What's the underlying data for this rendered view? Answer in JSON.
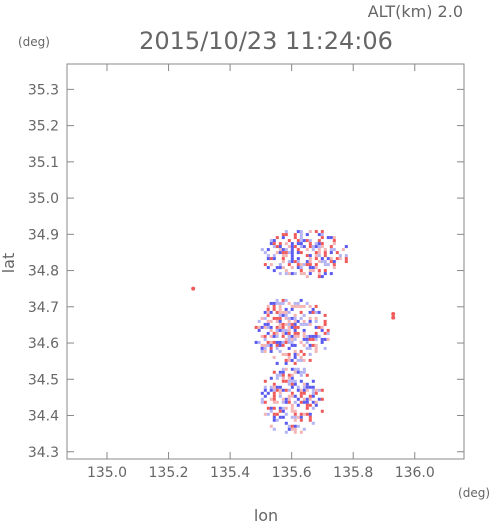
{
  "header": {
    "altitude_label": "ALT(km)  2.0",
    "timestamp": "2015/10/23 11:24:06"
  },
  "chart_data": {
    "type": "heatmap",
    "title": "2015/10/23 11:24:06",
    "subtitle": "ALT(km)  2.0",
    "xlabel": "lon",
    "ylabel": "lat",
    "x_unit": "(deg)",
    "y_unit": "(deg)",
    "xlim": [
      134.87,
      136.16
    ],
    "ylim": [
      34.28,
      35.37
    ],
    "x_ticks": [
      135.0,
      135.2,
      135.4,
      135.6,
      135.8,
      136.0
    ],
    "x_tick_labels": [
      "135.0",
      "135.2",
      "135.4",
      "135.6",
      "135.8",
      "136.0"
    ],
    "y_ticks": [
      34.3,
      34.4,
      34.5,
      34.6,
      34.7,
      34.8,
      34.9,
      35.0,
      35.1,
      35.2,
      35.3
    ],
    "y_tick_labels": [
      "34.3",
      "34.4",
      "34.5",
      "34.6",
      "34.7",
      "34.8",
      "34.9",
      "35.0",
      "35.1",
      "35.2",
      "35.3"
    ],
    "grid": false,
    "colors": {
      "positive": "#f05a5a",
      "negative": "#5a5af0",
      "light_positive": "#f5b4b4",
      "light_negative": "#b4b4f5",
      "axis": "#888888"
    },
    "isolated_points": [
      {
        "lon": 135.28,
        "lat": 34.75,
        "sign": "positive"
      },
      {
        "lon": 135.93,
        "lat": 34.68,
        "sign": "positive"
      },
      {
        "lon": 135.93,
        "lat": 34.67,
        "sign": "positive"
      }
    ],
    "data_regions": [
      {
        "lon_range": [
          135.47,
          135.72
        ],
        "lat_range": [
          34.54,
          34.73
        ]
      },
      {
        "lon_range": [
          135.49,
          135.7
        ],
        "lat_range": [
          34.35,
          34.54
        ]
      },
      {
        "lon_range": [
          135.49,
          135.78
        ],
        "lat_range": [
          34.78,
          34.92
        ]
      }
    ]
  }
}
